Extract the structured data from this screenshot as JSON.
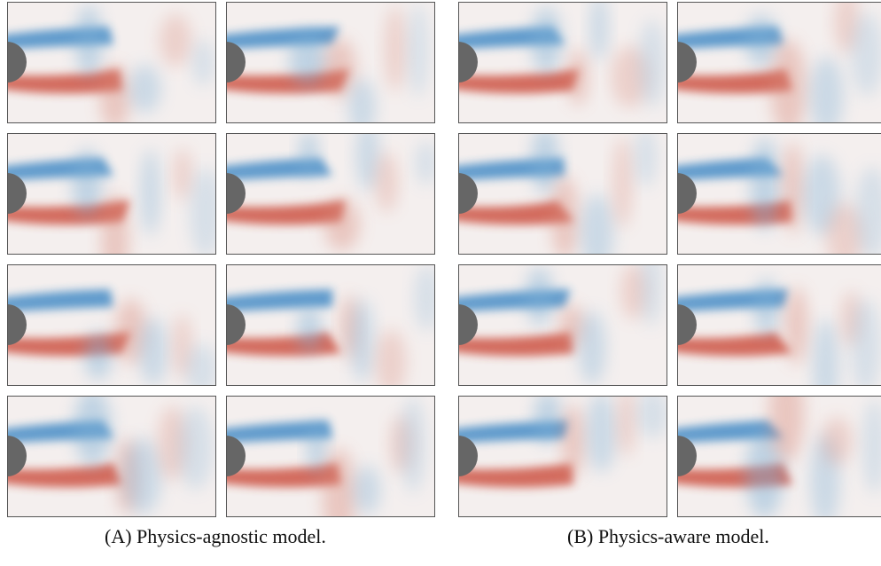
{
  "figure": {
    "subfigures": [
      {
        "caption": "(A) Physics-agnostic model."
      },
      {
        "caption": "(B) Physics-aware model."
      }
    ]
  }
}
